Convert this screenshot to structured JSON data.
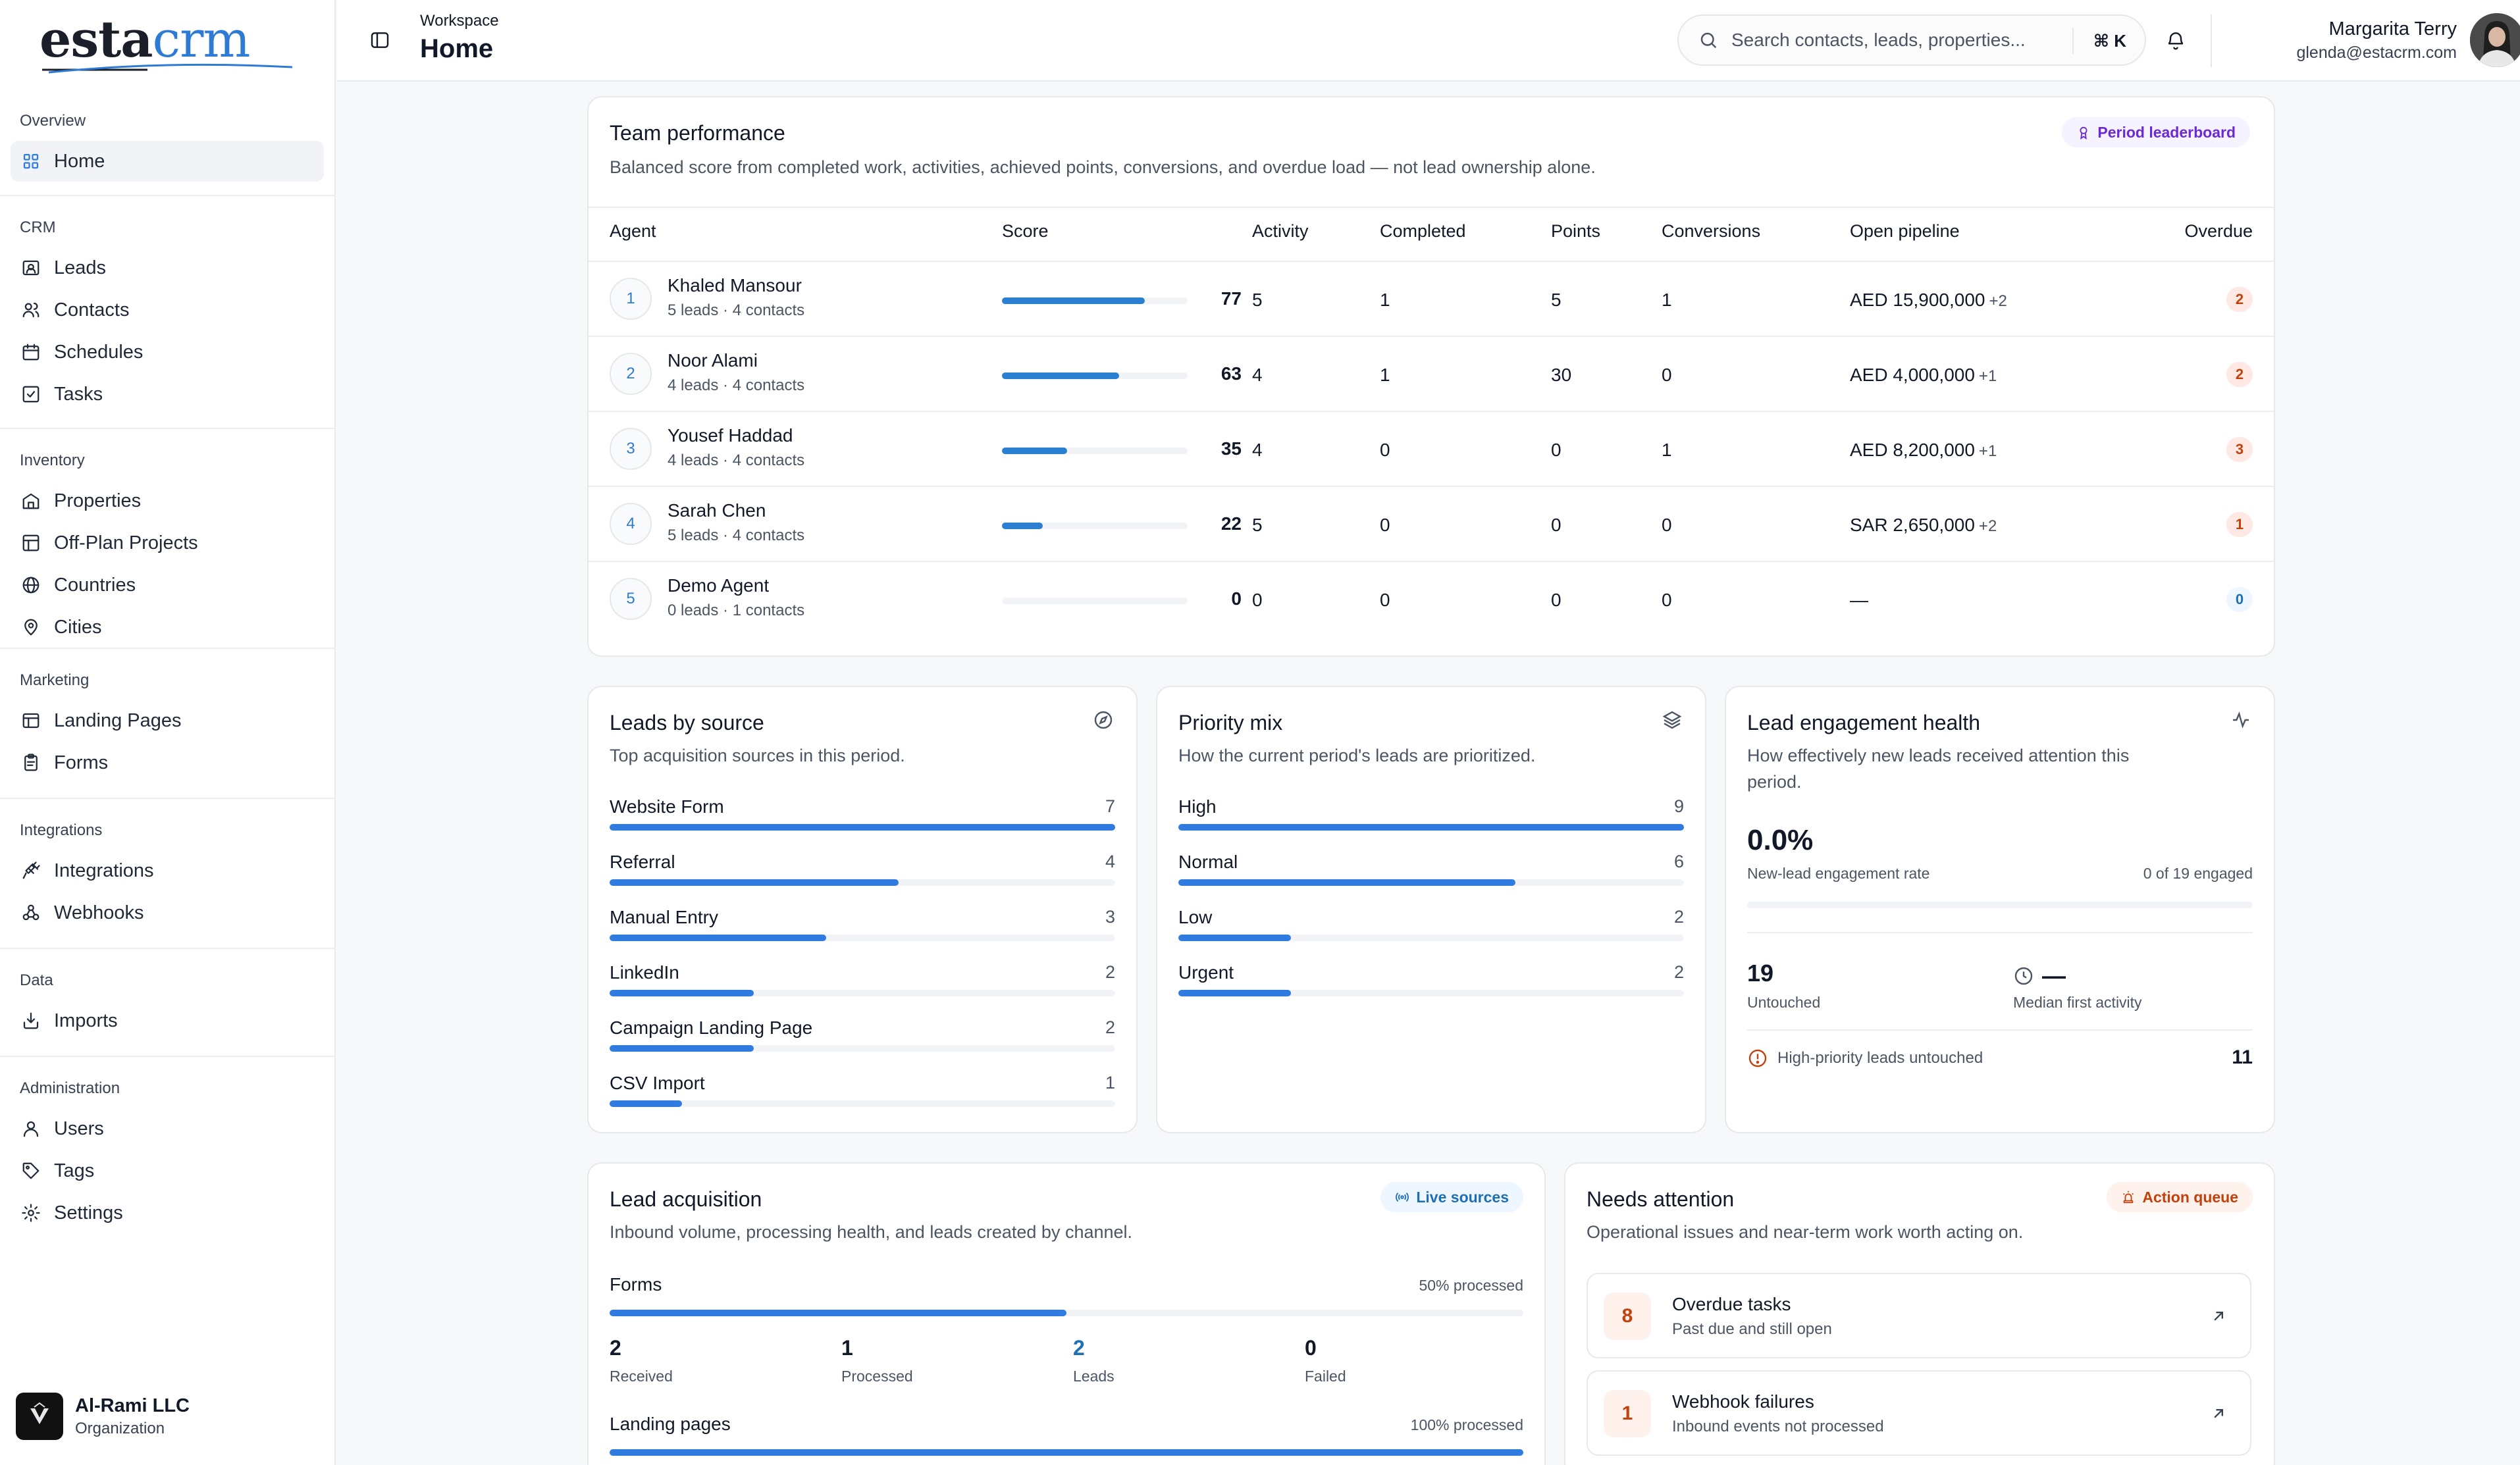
{
  "brand": {
    "logo_part1": "esta",
    "logo_part2": "crm"
  },
  "sidebar": {
    "sections": [
      {
        "label": "Overview",
        "items": [
          {
            "label": "Home",
            "icon": "grid-icon",
            "active": true
          }
        ]
      },
      {
        "label": "CRM",
        "items": [
          {
            "label": "Leads",
            "icon": "contact-card-icon"
          },
          {
            "label": "Contacts",
            "icon": "users-icon"
          },
          {
            "label": "Schedules",
            "icon": "calendar-icon"
          },
          {
            "label": "Tasks",
            "icon": "checkbox-icon"
          }
        ]
      },
      {
        "label": "Inventory",
        "items": [
          {
            "label": "Properties",
            "icon": "building-icon"
          },
          {
            "label": "Off-Plan Projects",
            "icon": "blueprint-icon"
          },
          {
            "label": "Countries",
            "icon": "globe-icon"
          },
          {
            "label": "Cities",
            "icon": "map-pin-icon"
          }
        ]
      },
      {
        "label": "Marketing",
        "items": [
          {
            "label": "Landing Pages",
            "icon": "layout-icon"
          },
          {
            "label": "Forms",
            "icon": "clipboard-icon"
          }
        ]
      },
      {
        "label": "Integrations",
        "items": [
          {
            "label": "Integrations",
            "icon": "plug-icon"
          },
          {
            "label": "Webhooks",
            "icon": "webhook-icon"
          }
        ]
      },
      {
        "label": "Data",
        "items": [
          {
            "label": "Imports",
            "icon": "import-icon"
          }
        ]
      },
      {
        "label": "Administration",
        "items": [
          {
            "label": "Users",
            "icon": "user-icon"
          },
          {
            "label": "Tags",
            "icon": "tag-icon"
          },
          {
            "label": "Settings",
            "icon": "gear-icon"
          }
        ]
      }
    ],
    "org": {
      "name": "Al-Rami LLC",
      "type": "Organization"
    }
  },
  "header": {
    "breadcrumb": "Workspace",
    "title": "Home",
    "search_placeholder": "Search contacts, leads, properties...",
    "search_shortcut": "⌘ K",
    "user_name": "Margarita Terry",
    "user_email": "glenda@estacrm.com"
  },
  "team": {
    "title": "Team performance",
    "subtitle": "Balanced score from completed work, activities, achieved points, conversions, and overdue load — not lead ownership alone.",
    "badge": "Period leaderboard",
    "columns": [
      "Agent",
      "Score",
      "Activity",
      "Completed",
      "Points",
      "Conversions",
      "Open pipeline",
      "Overdue"
    ],
    "rows": [
      {
        "rank": "1",
        "name": "Khaled Mansour",
        "meta": "5 leads · 4 contacts",
        "score": 77,
        "score_label": "77",
        "activity": "5",
        "completed": "1",
        "points": "5",
        "conversions": "1",
        "pipeline": "AED 15,900,000",
        "pipeline_more": "+2",
        "overdue": "2"
      },
      {
        "rank": "2",
        "name": "Noor Alami",
        "meta": "4 leads · 4 contacts",
        "score": 63,
        "score_label": "63",
        "activity": "4",
        "completed": "1",
        "points": "30",
        "conversions": "0",
        "pipeline": "AED 4,000,000",
        "pipeline_more": "+1",
        "overdue": "2"
      },
      {
        "rank": "3",
        "name": "Yousef Haddad",
        "meta": "4 leads · 4 contacts",
        "score": 35,
        "score_label": "35",
        "activity": "4",
        "completed": "0",
        "points": "0",
        "conversions": "1",
        "pipeline": "AED 8,200,000",
        "pipeline_more": "+1",
        "overdue": "3"
      },
      {
        "rank": "4",
        "name": "Sarah Chen",
        "meta": "5 leads · 4 contacts",
        "score": 22,
        "score_label": "22",
        "activity": "5",
        "completed": "0",
        "points": "0",
        "conversions": "0",
        "pipeline": "SAR 2,650,000",
        "pipeline_more": "+2",
        "overdue": "1"
      },
      {
        "rank": "5",
        "name": "Demo Agent",
        "meta": "0 leads · 1 contacts",
        "score": 0,
        "score_label": "0",
        "activity": "0",
        "completed": "0",
        "points": "0",
        "conversions": "0",
        "pipeline": "—",
        "pipeline_more": "",
        "overdue": "0"
      }
    ]
  },
  "sources": {
    "title": "Leads by source",
    "subtitle": "Top acquisition sources in this period.",
    "max": 7,
    "items": [
      {
        "label": "Website Form",
        "value": 7,
        "value_label": "7"
      },
      {
        "label": "Referral",
        "value": 4,
        "value_label": "4"
      },
      {
        "label": "Manual Entry",
        "value": 3,
        "value_label": "3"
      },
      {
        "label": "LinkedIn",
        "value": 2,
        "value_label": "2"
      },
      {
        "label": "Campaign Landing Page",
        "value": 2,
        "value_label": "2"
      },
      {
        "label": "CSV Import",
        "value": 1,
        "value_label": "1"
      }
    ]
  },
  "priority": {
    "title": "Priority mix",
    "subtitle": "How the current period's leads are prioritized.",
    "max": 9,
    "items": [
      {
        "label": "High",
        "value": 9,
        "value_label": "9"
      },
      {
        "label": "Normal",
        "value": 6,
        "value_label": "6"
      },
      {
        "label": "Low",
        "value": 2,
        "value_label": "2"
      },
      {
        "label": "Urgent",
        "value": 2,
        "value_label": "2"
      }
    ]
  },
  "engagement": {
    "title": "Lead engagement health",
    "subtitle_line1": "How effectively new leads received attention this",
    "subtitle_line2": "period.",
    "rate": "0.0%",
    "rate_fraction": 0.0,
    "rate_label": "New-lead engagement rate",
    "engaged_label": "0 of 19 engaged",
    "untouched": "19",
    "untouched_label": "Untouched",
    "median": "—",
    "median_label": "Median first activity",
    "high_priority_label": "High-priority leads untouched",
    "high_priority_value": "11"
  },
  "acquisition": {
    "title": "Lead acquisition",
    "subtitle": "Inbound volume, processing health, and leads created by channel.",
    "badge": "Live sources",
    "channels": [
      {
        "name": "Forms",
        "processed_label": "50% processed",
        "processed": 0.5,
        "stats": [
          {
            "value": "2",
            "label": "Received"
          },
          {
            "value": "1",
            "label": "Processed"
          },
          {
            "value": "2",
            "label": "Leads"
          },
          {
            "value": "0",
            "label": "Failed"
          }
        ]
      },
      {
        "name": "Landing pages",
        "processed_label": "100% processed",
        "processed": 1.0
      }
    ]
  },
  "attention": {
    "title": "Needs attention",
    "subtitle": "Operational issues and near-term work worth acting on.",
    "badge": "Action queue",
    "items": [
      {
        "count": "8",
        "title": "Overdue tasks",
        "subtitle": "Past due and still open"
      },
      {
        "count": "1",
        "title": "Webhook failures",
        "subtitle": "Inbound events not processed"
      }
    ]
  },
  "colors": {
    "accent": "#2f7be0",
    "warn": "#c2410c",
    "badge_purple": "#6d28d9"
  }
}
